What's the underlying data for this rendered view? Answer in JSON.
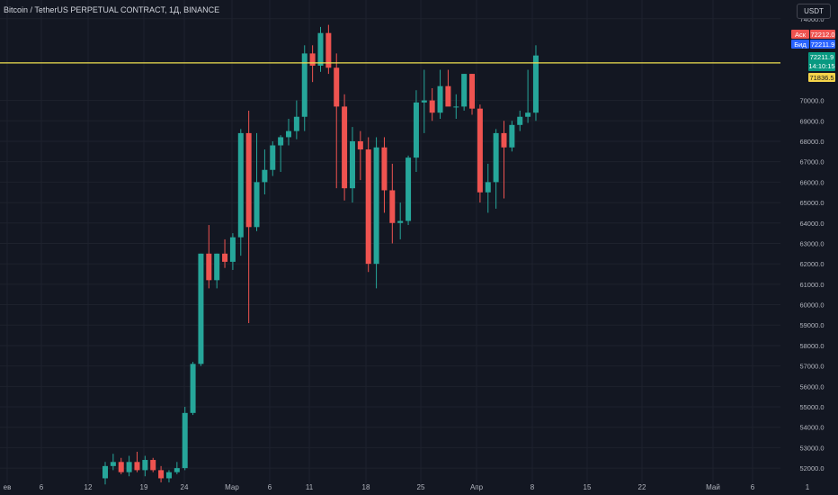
{
  "header": {
    "title": "Bitcoin / TetherUS PERPETUAL CONTRACT, 1Д, BINANCE",
    "currency": "USDT"
  },
  "colors": {
    "background": "#131722",
    "grid": "#1e222d",
    "up": "#26a69a",
    "down": "#ef5350",
    "hline": "#f0e050",
    "ask": "#ef5350",
    "bid": "#2962ff",
    "last": "#089981",
    "alert": "#f5d44a",
    "axis_text": "#b2b5be"
  },
  "price_tags": {
    "ask_label": "Аск",
    "ask_value": "72212.0",
    "bid_label": "Бид",
    "bid_value": "72211.9",
    "last_value": "72211.9",
    "countdown": "14:10:15",
    "hline_value": "71836.5"
  },
  "chart_data": {
    "type": "candlestick",
    "x_tick_labels": [
      "ев",
      "6",
      "12",
      "19",
      "24",
      "Мар",
      "6",
      "11",
      "18",
      "25",
      "Апр",
      "8",
      "15",
      "22",
      "Май",
      "6",
      "1"
    ],
    "y_tick_labels": [
      "74000.0",
      "70000.0",
      "69000.0",
      "68000.0",
      "67000.0",
      "66000.0",
      "65000.0",
      "64000.0",
      "63000.0",
      "62000.0",
      "61000.0",
      "60000.0",
      "59000.0",
      "58000.0",
      "57000.0",
      "56000.0",
      "55000.0",
      "54000.0",
      "53000.0",
      "52000.0"
    ],
    "ylim": [
      51300,
      74300
    ],
    "horizontal_line": 71836.5,
    "candles": [
      {
        "o": 51500,
        "h": 52300,
        "l": 51200,
        "c": 52100
      },
      {
        "o": 52100,
        "h": 52700,
        "l": 51900,
        "c": 52300
      },
      {
        "o": 52300,
        "h": 52500,
        "l": 51700,
        "c": 51800
      },
      {
        "o": 51800,
        "h": 52600,
        "l": 51600,
        "c": 52300
      },
      {
        "o": 52300,
        "h": 52800,
        "l": 51800,
        "c": 51900
      },
      {
        "o": 51900,
        "h": 52600,
        "l": 51600,
        "c": 52400
      },
      {
        "o": 52400,
        "h": 52500,
        "l": 51800,
        "c": 51900
      },
      {
        "o": 51900,
        "h": 52100,
        "l": 51300,
        "c": 51500
      },
      {
        "o": 51500,
        "h": 51900,
        "l": 51300,
        "c": 51800
      },
      {
        "o": 51800,
        "h": 52300,
        "l": 51700,
        "c": 52000
      },
      {
        "o": 52000,
        "h": 55000,
        "l": 51900,
        "c": 54700
      },
      {
        "o": 54700,
        "h": 57200,
        "l": 54600,
        "c": 57100
      },
      {
        "o": 57100,
        "h": 62500,
        "l": 57000,
        "c": 62500
      },
      {
        "o": 62500,
        "h": 63900,
        "l": 60800,
        "c": 61200
      },
      {
        "o": 61200,
        "h": 62500,
        "l": 60800,
        "c": 62500
      },
      {
        "o": 62500,
        "h": 63200,
        "l": 61800,
        "c": 62100
      },
      {
        "o": 62100,
        "h": 63500,
        "l": 61700,
        "c": 63300
      },
      {
        "o": 63300,
        "h": 68600,
        "l": 62400,
        "c": 68400
      },
      {
        "o": 68400,
        "h": 69500,
        "l": 59100,
        "c": 63800
      },
      {
        "o": 63800,
        "h": 68400,
        "l": 63600,
        "c": 66000
      },
      {
        "o": 66000,
        "h": 67600,
        "l": 65400,
        "c": 66600
      },
      {
        "o": 66600,
        "h": 68000,
        "l": 66300,
        "c": 67800
      },
      {
        "o": 67800,
        "h": 68300,
        "l": 66500,
        "c": 68200
      },
      {
        "o": 68200,
        "h": 69100,
        "l": 67800,
        "c": 68500
      },
      {
        "o": 68500,
        "h": 70000,
        "l": 68100,
        "c": 69200
      },
      {
        "o": 69200,
        "h": 72700,
        "l": 68500,
        "c": 72300
      },
      {
        "o": 72300,
        "h": 72700,
        "l": 70900,
        "c": 71700
      },
      {
        "o": 71700,
        "h": 73600,
        "l": 71400,
        "c": 73300
      },
      {
        "o": 73300,
        "h": 73700,
        "l": 71300,
        "c": 71600
      },
      {
        "o": 71600,
        "h": 72300,
        "l": 65700,
        "c": 69700
      },
      {
        "o": 69700,
        "h": 70300,
        "l": 65100,
        "c": 65700
      },
      {
        "o": 65700,
        "h": 68700,
        "l": 65000,
        "c": 68000
      },
      {
        "o": 68000,
        "h": 68500,
        "l": 66100,
        "c": 67600
      },
      {
        "o": 67600,
        "h": 68200,
        "l": 61600,
        "c": 62000
      },
      {
        "o": 62000,
        "h": 68200,
        "l": 60800,
        "c": 67700
      },
      {
        "o": 67700,
        "h": 68200,
        "l": 64500,
        "c": 65600
      },
      {
        "o": 65600,
        "h": 66900,
        "l": 63000,
        "c": 64000
      },
      {
        "o": 64000,
        "h": 65000,
        "l": 63200,
        "c": 64100
      },
      {
        "o": 64100,
        "h": 67300,
        "l": 63900,
        "c": 67200
      },
      {
        "o": 67200,
        "h": 70500,
        "l": 66500,
        "c": 69900
      },
      {
        "o": 69900,
        "h": 71500,
        "l": 68400,
        "c": 70000
      },
      {
        "o": 70000,
        "h": 70600,
        "l": 69000,
        "c": 69400
      },
      {
        "o": 69400,
        "h": 71500,
        "l": 69100,
        "c": 70700
      },
      {
        "o": 70700,
        "h": 71500,
        "l": 69800,
        "c": 69700
      },
      {
        "o": 69700,
        "h": 70300,
        "l": 69100,
        "c": 69700
      },
      {
        "o": 69700,
        "h": 71300,
        "l": 69500,
        "c": 71300
      },
      {
        "o": 71300,
        "h": 71300,
        "l": 69300,
        "c": 69600
      },
      {
        "o": 69600,
        "h": 69800,
        "l": 65000,
        "c": 65500
      },
      {
        "o": 65500,
        "h": 66900,
        "l": 64500,
        "c": 66000
      },
      {
        "o": 66000,
        "h": 68600,
        "l": 64700,
        "c": 68400
      },
      {
        "o": 68400,
        "h": 69000,
        "l": 65200,
        "c": 67700
      },
      {
        "o": 67700,
        "h": 69000,
        "l": 67500,
        "c": 68800
      },
      {
        "o": 68800,
        "h": 69500,
        "l": 68500,
        "c": 69200
      },
      {
        "o": 69200,
        "h": 71500,
        "l": 68900,
        "c": 69400
      },
      {
        "o": 69400,
        "h": 72700,
        "l": 69000,
        "c": 72200
      }
    ]
  }
}
